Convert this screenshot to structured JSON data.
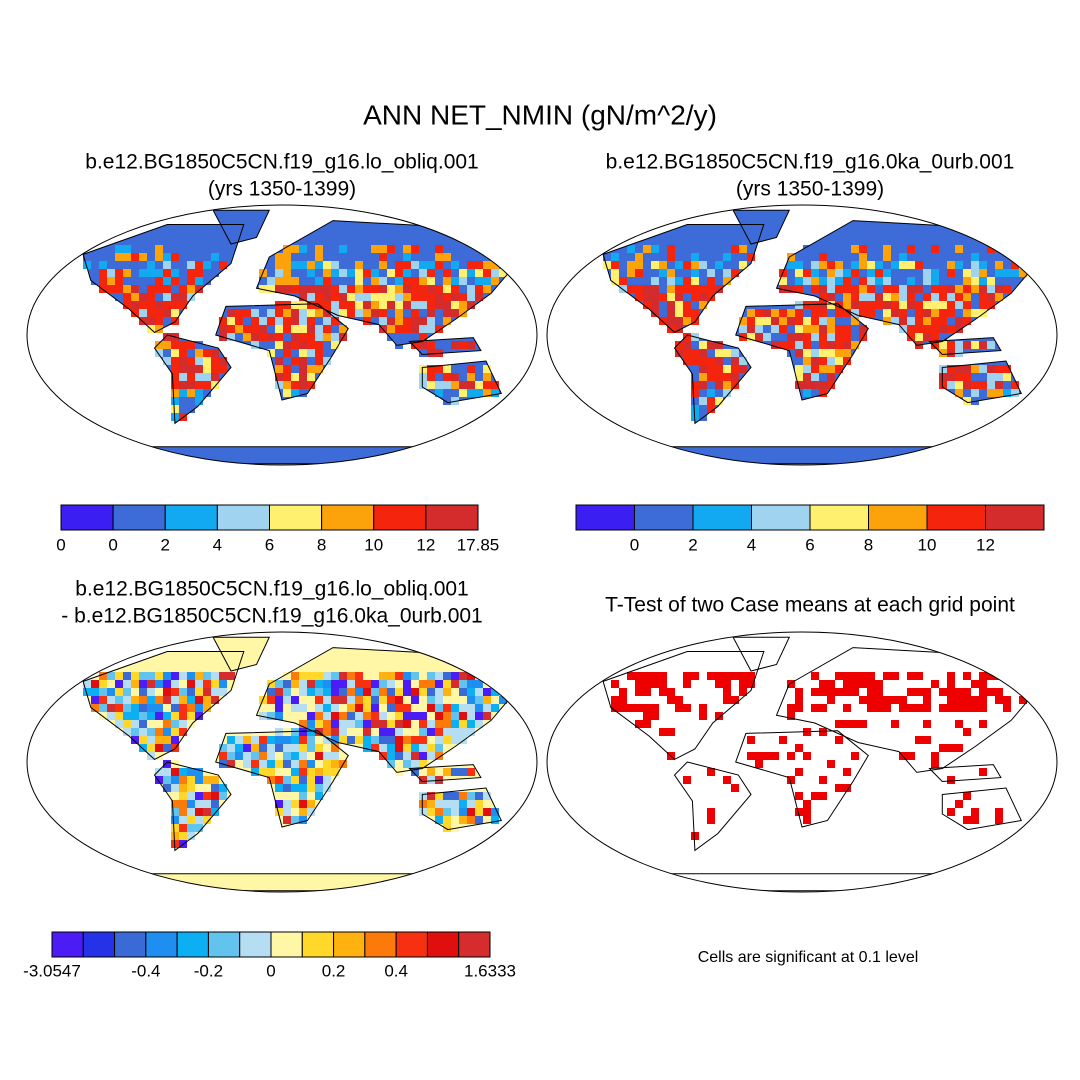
{
  "title": "ANN NET_NMIN (gN/m^2/y)",
  "panels": [
    {
      "title": [
        "b.e12.BG1850C5CN.f19_g16.lo_obliq.001",
        "(yrs 1350-1399)"
      ],
      "land_color": "#3d6cd8",
      "colorbar": {
        "colors": [
          "#3b1ff2",
          "#3d6cd8",
          "#12a9f0",
          "#9fd3f0",
          "#fff06f",
          "#fca30b",
          "#f5240c",
          "#d42c2c"
        ],
        "labels": [
          "0",
          "0",
          "2",
          "4",
          "6",
          "8",
          "10",
          "12",
          "17.85"
        ]
      }
    },
    {
      "title": [
        "b.e12.BG1850C5CN.f19_g16.0ka_0urb.001",
        "(yrs 1350-1399)"
      ],
      "land_color": "#3d6cd8",
      "colorbar": {
        "colors": [
          "#3b1ff2",
          "#3d6cd8",
          "#12a9f0",
          "#9fd3f0",
          "#fff06f",
          "#fca30b",
          "#f5240c",
          "#d42c2c"
        ],
        "labels": [
          null,
          "0",
          "2",
          "4",
          "6",
          "8",
          "10",
          "12",
          null
        ]
      }
    },
    {
      "title": [
        "b.e12.BG1850C5CN.f19_g16.lo_obliq.001",
        "- b.e12.BG1850C5CN.f19_g16.0ka_0urb.001"
      ],
      "land_color": "#fff7a6",
      "colorbar": {
        "colors": [
          "#4c1cf5",
          "#2433e8",
          "#3a6ad6",
          "#1f8ef1",
          "#0cb0f2",
          "#62c3ee",
          "#b5def2",
          "#fff7a6",
          "#ffd82a",
          "#ffb20f",
          "#fb7a0a",
          "#f63010",
          "#e00f0f",
          "#d52d2d"
        ],
        "labels": [
          "-3.0547",
          null,
          null,
          "-0.4",
          null,
          "-0.2",
          null,
          "0",
          null,
          "0.2",
          null,
          "0.4",
          null,
          null,
          "1.6333"
        ]
      }
    },
    {
      "title": [
        "T-Test of two Case means at each grid point"
      ],
      "land_color": "#ffffff",
      "significant_color": "#ee0000",
      "note": "Cells are significant at 0.1 level"
    }
  ]
}
